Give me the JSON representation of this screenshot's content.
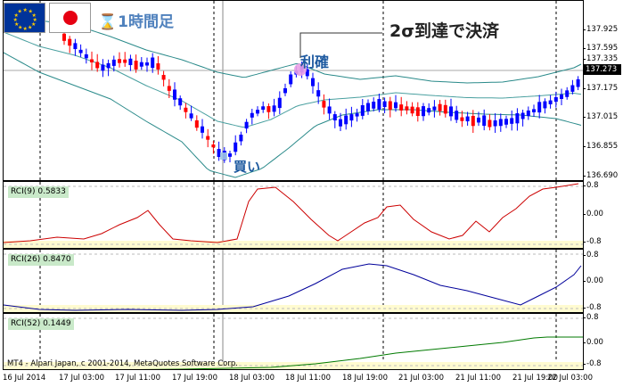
{
  "overlay": {
    "timeframe": "1時間足",
    "take_profit": "利確",
    "buy": "買い",
    "two_sigma": "2σ到達で決済",
    "copyright": "MT4 - Alpari Japan, c 2001-2014, MetaQuotes Software Corp."
  },
  "main_chart": {
    "current_price": "137.273",
    "y_ticks": [
      "137.925",
      "137.595",
      "137.335",
      "137.175",
      "137.015",
      "136.855",
      "136.690"
    ],
    "colors": {
      "bull": "#0000ff",
      "bear": "#ff0000",
      "band": "#2a8a8a"
    }
  },
  "indicators": [
    {
      "label": "RCI(9) 0.5833",
      "color": "#cc0000",
      "ticks": [
        "0.8",
        "0.00",
        "-0.8"
      ]
    },
    {
      "label": "RCI(26) 0.8470",
      "color": "#00009a",
      "ticks": [
        "0.8",
        "0.00",
        "-0.8"
      ]
    },
    {
      "label": "RCI(52) 0.1449",
      "color": "#007a00",
      "ticks": [
        "0.8",
        "0.00",
        "-0.8"
      ]
    }
  ],
  "x_axis": [
    "16 Jul 2014",
    "17 Jul 03:00",
    "17 Jul 11:00",
    "17 Jul 19:00",
    "18 Jul 03:00",
    "18 Jul 11:00",
    "18 Jul 19:00",
    "21 Jul 03:00",
    "21 Jul 11:00",
    "21 Jul 19:00",
    "22 Jul 03:00"
  ]
}
